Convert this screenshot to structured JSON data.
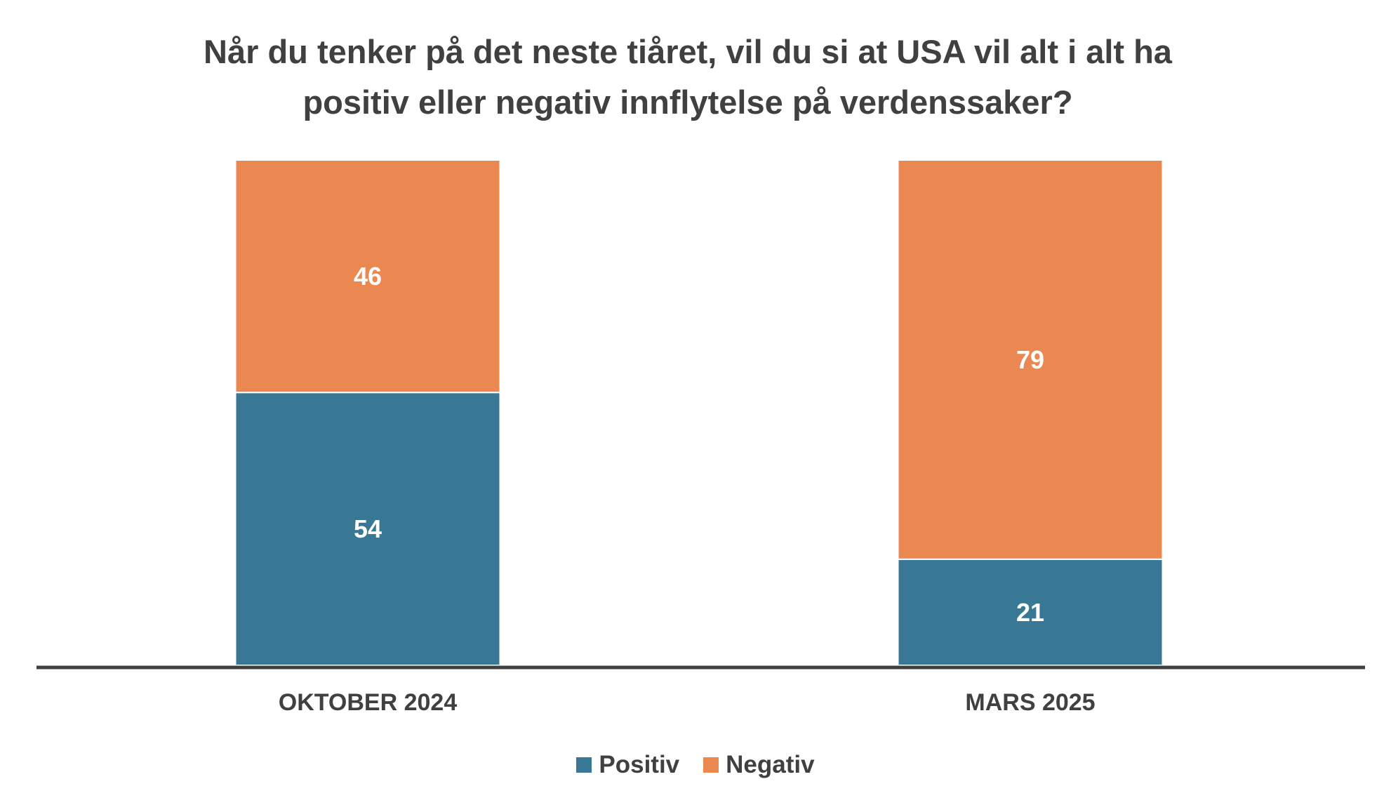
{
  "chart_data": {
    "type": "bar",
    "stacked": true,
    "title_lines": [
      "Når du tenker på det neste tiåret, vil du si at USA vil alt i alt ha",
      "positiv eller negativ innflytelse på verdenssaker?"
    ],
    "categories": [
      "OKTOBER 2024",
      "MARS 2025"
    ],
    "series": [
      {
        "name": "Positiv",
        "color": "#387894",
        "values": [
          54,
          21
        ]
      },
      {
        "name": "Negativ",
        "color": "#EB8851",
        "values": [
          46,
          79
        ]
      }
    ],
    "ylim": [
      0,
      100
    ],
    "grid": false,
    "legend_position": "bottom"
  }
}
